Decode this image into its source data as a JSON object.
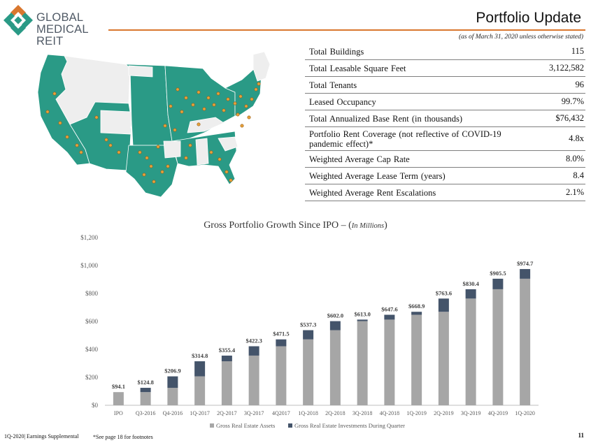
{
  "logo": {
    "line1": "GLOBAL",
    "line2": "MEDICAL REIT"
  },
  "header": {
    "title": "Portfolio Update",
    "subtitle": "(as of March 31, 2020 unless otherwise stated)"
  },
  "colors": {
    "accent_orange": "#d9772e",
    "map_teal": "#2a9a86",
    "map_gray": "#eeeeee",
    "marker": "#e6a23c",
    "bar_assets": "#a6a6a6",
    "bar_investments": "#44546a"
  },
  "metrics": [
    {
      "label": "Total Buildings",
      "value": "115"
    },
    {
      "label": "Total Leasable Square Feet",
      "value": "3,122,582"
    },
    {
      "label": "Total Tenants",
      "value": "96"
    },
    {
      "label": "Leased Occupancy",
      "value": "99.7%"
    },
    {
      "label": "Total Annualized Base Rent (in thousands)",
      "value": "$76,432"
    },
    {
      "label": "Portfolio Rent Coverage (not reflective of COVID-19 pandemic effect)*",
      "value": "4.8x"
    },
    {
      "label": "Weighted Average Cap Rate",
      "value": "8.0%"
    },
    {
      "label": "Weighted Average Lease Term (years)",
      "value": "8.4"
    },
    {
      "label": "Weighted Average Rent Escalations",
      "value": "2.1%"
    }
  ],
  "chart_title": {
    "main": "Gross Portfolio Growth Since IPO –",
    "open": "(",
    "units": "In Millions",
    "close": ")"
  },
  "chart_data": {
    "type": "bar",
    "stacked": true,
    "categories": [
      "IPO",
      "Q3-2016",
      "Q4-2016",
      "1Q-2017",
      "2Q-2017",
      "3Q-2017",
      "4Q2017",
      "1Q-2018",
      "2Q-2018",
      "3Q-2018",
      "4Q-2018",
      "1Q-2019",
      "2Q-2019",
      "3Q-2019",
      "4Q-2019",
      "1Q-2020"
    ],
    "series": [
      {
        "name": "Gross Real Estate Assets",
        "color": "#a6a6a6",
        "values": [
          94.1,
          94.1,
          124.8,
          206.9,
          314.8,
          355.4,
          422.3,
          471.5,
          537.3,
          602.0,
          613.0,
          647.6,
          668.9,
          763.6,
          830.4,
          905.5
        ]
      },
      {
        "name": "Gross Real Estate Investments During Quarter",
        "color": "#44546a",
        "values": [
          0,
          30.7,
          82.1,
          107.9,
          40.6,
          66.9,
          49.2,
          65.8,
          64.7,
          11.0,
          34.6,
          21.3,
          94.7,
          66.8,
          75.1,
          69.2
        ]
      }
    ],
    "totals": [
      94.1,
      124.8,
      206.9,
      314.8,
      355.4,
      422.3,
      471.5,
      537.3,
      602.0,
      613.0,
      647.6,
      668.9,
      763.6,
      830.4,
      905.5,
      974.7
    ],
    "total_labels": [
      "$94.1",
      "$124.8",
      "$206.9",
      "$314.8",
      "$355.4",
      "$422.3",
      "$471.5",
      "$537.3",
      "$602.0",
      "$613.0",
      "$647.6",
      "$668.9",
      "$763.6",
      "$830.4",
      "$905.5",
      "$974.7"
    ],
    "y_ticks": [
      0,
      200,
      400,
      600,
      800,
      1000,
      1200
    ],
    "y_tick_labels": [
      "$0",
      "$200",
      "$400",
      "$600",
      "$800",
      "$1,000",
      "$1,200"
    ],
    "ylim": [
      0,
      1200
    ],
    "legend_position": "bottom",
    "grid": false
  },
  "footer": {
    "left": "1Q-2020| Earnings Supplemental",
    "note": "*See page 18 for footnotes",
    "page": "11"
  }
}
